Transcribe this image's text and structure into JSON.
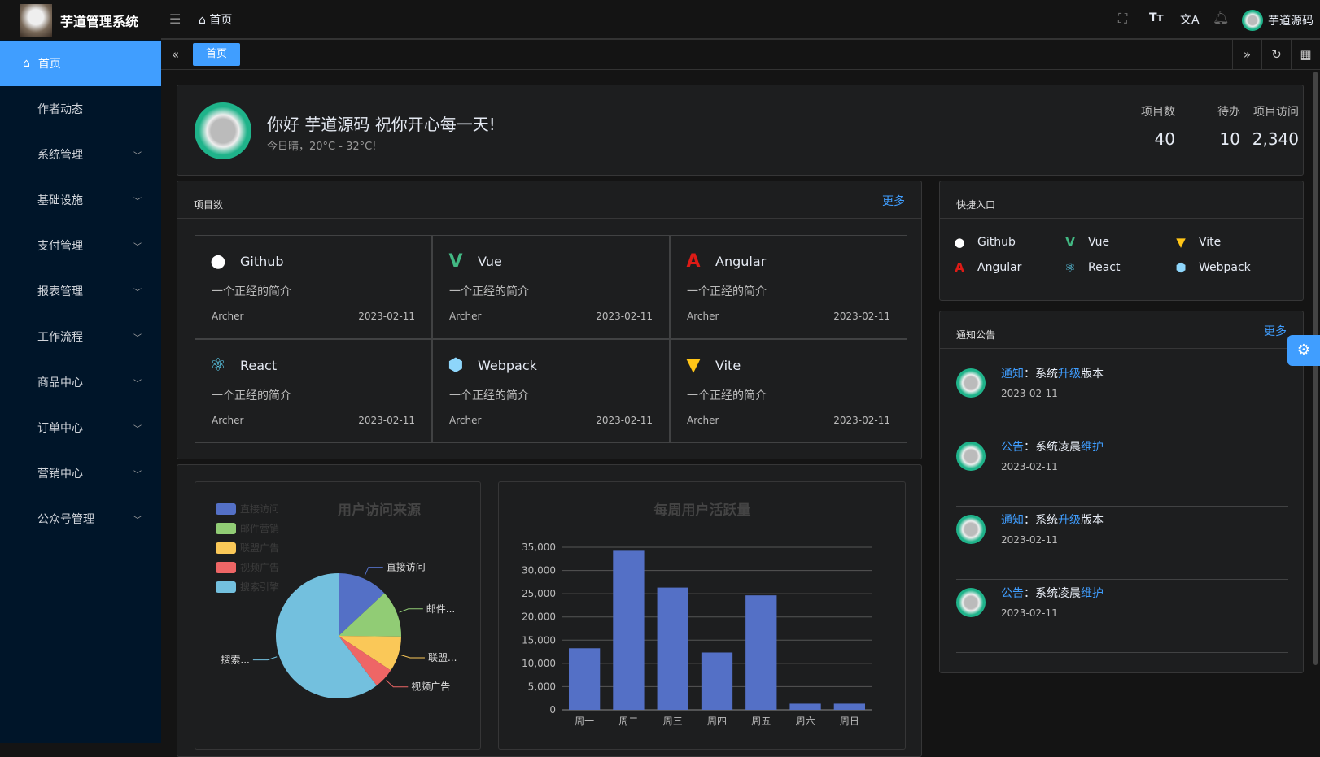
{
  "app": {
    "title": "芋道管理系统",
    "user": "芋道源码"
  },
  "header": {
    "breadcrumb": "首页"
  },
  "sidebar": {
    "items": [
      {
        "label": "首页"
      },
      {
        "label": "作者动态"
      },
      {
        "label": "系统管理"
      },
      {
        "label": "基础设施"
      },
      {
        "label": "支付管理"
      },
      {
        "label": "报表管理"
      },
      {
        "label": "工作流程"
      },
      {
        "label": "商品中心"
      },
      {
        "label": "订单中心"
      },
      {
        "label": "营销中心"
      },
      {
        "label": "公众号管理"
      }
    ]
  },
  "tabs": [
    {
      "label": "首页"
    }
  ],
  "welcome": {
    "greeting": "你好 芋道源码 祝你开心每一天!",
    "weather": "今日晴，20°C - 32°C!",
    "stats": [
      {
        "label": "项目数",
        "value": "40"
      },
      {
        "label": "待办",
        "value": "10"
      },
      {
        "label": "项目访问",
        "value": "2,340"
      }
    ]
  },
  "projects": {
    "title": "项目数",
    "more": "更多",
    "items": [
      {
        "name": "Github",
        "desc": "一个正经的简介",
        "author": "Archer",
        "date": "2023-02-11",
        "icon": "github-icon",
        "color": "#ffffff"
      },
      {
        "name": "Vue",
        "desc": "一个正经的简介",
        "author": "Archer",
        "date": "2023-02-11",
        "icon": "vue-icon",
        "color": "#42b883"
      },
      {
        "name": "Angular",
        "desc": "一个正经的简介",
        "author": "Archer",
        "date": "2023-02-11",
        "icon": "angular-icon",
        "color": "#dd1b16"
      },
      {
        "name": "React",
        "desc": "一个正经的简介",
        "author": "Archer",
        "date": "2023-02-11",
        "icon": "react-icon",
        "color": "#61dafb"
      },
      {
        "name": "Webpack",
        "desc": "一个正经的简介",
        "author": "Archer",
        "date": "2023-02-11",
        "icon": "webpack-icon",
        "color": "#8ed6fb"
      },
      {
        "name": "Vite",
        "desc": "一个正经的简介",
        "author": "Archer",
        "date": "2023-02-11",
        "icon": "vite-icon",
        "color": "#ffc517"
      }
    ]
  },
  "shortcuts": {
    "title": "快捷入口",
    "items": [
      {
        "name": "Github"
      },
      {
        "name": "Vue"
      },
      {
        "name": "Vite"
      },
      {
        "name": "Angular"
      },
      {
        "name": "React"
      },
      {
        "name": "Webpack"
      }
    ]
  },
  "notices": {
    "title": "通知公告",
    "more": "更多",
    "items": [
      {
        "type": "通知",
        "sep": "：",
        "pre": "系统",
        "hl": "升级",
        "post": "版本",
        "date": "2023-02-11"
      },
      {
        "type": "公告",
        "sep": "：",
        "pre": "系统凌晨",
        "hl": "维护",
        "post": "",
        "date": "2023-02-11"
      },
      {
        "type": "通知",
        "sep": "：",
        "pre": "系统",
        "hl": "升级",
        "post": "版本",
        "date": "2023-02-11"
      },
      {
        "type": "公告",
        "sep": "：",
        "pre": "系统凌晨",
        "hl": "维护",
        "post": "",
        "date": "2023-02-11"
      }
    ]
  },
  "chart_data": [
    {
      "type": "pie",
      "title": "用户访问来源",
      "legend": "top-left",
      "slices": [
        {
          "name": "直接访问",
          "label": "直接访问",
          "value": 335,
          "color": "#5470c6"
        },
        {
          "name": "邮件营销",
          "label": "邮件...",
          "value": 310,
          "color": "#91cc75"
        },
        {
          "name": "联盟广告",
          "label": "联盟...",
          "value": 234,
          "color": "#fac858"
        },
        {
          "name": "视频广告",
          "label": "视频广告",
          "value": 135,
          "color": "#ee6666"
        },
        {
          "name": "搜索引擎",
          "label": "搜索...",
          "value": 1548,
          "color": "#73c0de"
        }
      ]
    },
    {
      "type": "bar",
      "title": "每周用户活跃量",
      "categories": [
        "周一",
        "周二",
        "周三",
        "周四",
        "周五",
        "周六",
        "周日"
      ],
      "values": [
        13253,
        34235,
        26321,
        12340,
        24643,
        1322,
        1324
      ],
      "ylim": [
        0,
        35000
      ],
      "yticks": [
        "0",
        "5,000",
        "10,000",
        "15,000",
        "20,000",
        "25,000",
        "30,000",
        "35,000"
      ],
      "grid": true,
      "color": "#5470c6"
    }
  ]
}
